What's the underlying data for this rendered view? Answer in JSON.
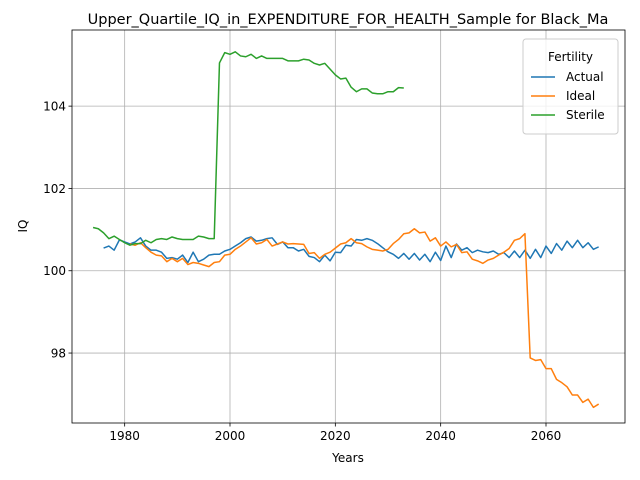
{
  "chart_data": {
    "type": "line",
    "title": "Upper_Quartile_IQ_in_EXPENDITURE_FOR_HEALTH_Sample for Black_Ma",
    "xlabel": "Years",
    "ylabel": "IQ",
    "xlim": [
      1970,
      2075
    ],
    "ylim": [
      96.3,
      105.85
    ],
    "xticks": [
      1980,
      2000,
      2020,
      2040,
      2060
    ],
    "yticks": [
      98,
      100,
      102,
      104
    ],
    "grid": true,
    "legend": {
      "title": "Fertility",
      "placement": "top-right"
    },
    "series": [
      {
        "name": "Actual",
        "color": "#1f77b4",
        "x": [
          1976,
          1977,
          1978,
          1979,
          1980,
          1981,
          1982,
          1983,
          1984,
          1985,
          1986,
          1987,
          1988,
          1989,
          1990,
          1991,
          1992,
          1993,
          1994,
          1995,
          1996,
          1997,
          1998,
          1999,
          2000,
          2001,
          2002,
          2003,
          2004,
          2005,
          2006,
          2007,
          2008,
          2009,
          2010,
          2011,
          2012,
          2013,
          2014,
          2015,
          2016,
          2017,
          2018,
          2019,
          2020,
          2021,
          2022,
          2023,
          2024,
          2025,
          2026,
          2027,
          2028,
          2029,
          2030,
          2031,
          2032,
          2033,
          2034,
          2035,
          2036,
          2037,
          2038,
          2039,
          2040,
          2041,
          2042,
          2043,
          2044,
          2045,
          2046,
          2047,
          2048,
          2049,
          2050,
          2051,
          2052,
          2053,
          2054,
          2055,
          2056,
          2057,
          2058,
          2059,
          2060,
          2061,
          2062,
          2063,
          2064,
          2065,
          2066,
          2067,
          2068,
          2069,
          2070
        ],
        "y": [
          100.55,
          100.6,
          100.5,
          100.75,
          100.7,
          100.65,
          100.7,
          100.8,
          100.6,
          100.5,
          100.5,
          100.45,
          100.3,
          100.32,
          100.28,
          100.38,
          100.2,
          100.45,
          100.22,
          100.28,
          100.38,
          100.4,
          100.4,
          100.48,
          100.52,
          100.6,
          100.68,
          100.78,
          100.82,
          100.72,
          100.74,
          100.78,
          100.8,
          100.64,
          100.7,
          100.56,
          100.56,
          100.48,
          100.52,
          100.35,
          100.32,
          100.22,
          100.38,
          100.24,
          100.45,
          100.44,
          100.62,
          100.6,
          100.76,
          100.74,
          100.78,
          100.74,
          100.66,
          100.56,
          100.46,
          100.4,
          100.3,
          100.42,
          100.28,
          100.42,
          100.26,
          100.4,
          100.22,
          100.45,
          100.25,
          100.6,
          100.32,
          100.65,
          100.5,
          100.56,
          100.44,
          100.5,
          100.46,
          100.44,
          100.48,
          100.4,
          100.44,
          100.32,
          100.48,
          100.32,
          100.5,
          100.3,
          100.52,
          100.32,
          100.6,
          100.42,
          100.66,
          100.5,
          100.72,
          100.56,
          100.74,
          100.56,
          100.68,
          100.52,
          100.58
        ]
      },
      {
        "name": "Ideal",
        "color": "#ff7f0e",
        "x": [
          1981,
          1982,
          1983,
          1984,
          1985,
          1986,
          1987,
          1988,
          1989,
          1990,
          1991,
          1992,
          1993,
          1994,
          1995,
          1996,
          1997,
          1998,
          1999,
          2000,
          2001,
          2002,
          2003,
          2004,
          2005,
          2006,
          2007,
          2008,
          2009,
          2010,
          2011,
          2012,
          2013,
          2014,
          2015,
          2016,
          2017,
          2018,
          2019,
          2020,
          2021,
          2022,
          2023,
          2024,
          2025,
          2026,
          2027,
          2028,
          2029,
          2030,
          2031,
          2032,
          2033,
          2034,
          2035,
          2036,
          2037,
          2038,
          2039,
          2040,
          2041,
          2042,
          2043,
          2044,
          2045,
          2046,
          2047,
          2048,
          2049,
          2050,
          2051,
          2052,
          2053,
          2054,
          2055,
          2056,
          2057,
          2058,
          2059,
          2060,
          2061,
          2062,
          2063,
          2064,
          2065,
          2066,
          2067,
          2068,
          2069,
          2070
        ],
        "y": [
          100.65,
          100.62,
          100.68,
          100.56,
          100.45,
          100.38,
          100.36,
          100.22,
          100.3,
          100.22,
          100.3,
          100.15,
          100.2,
          100.18,
          100.14,
          100.1,
          100.2,
          100.22,
          100.38,
          100.4,
          100.52,
          100.6,
          100.7,
          100.8,
          100.65,
          100.68,
          100.76,
          100.6,
          100.65,
          100.7,
          100.65,
          100.66,
          100.65,
          100.64,
          100.42,
          100.44,
          100.3,
          100.4,
          100.45,
          100.55,
          100.65,
          100.68,
          100.78,
          100.68,
          100.66,
          100.58,
          100.52,
          100.5,
          100.48,
          100.52,
          100.66,
          100.76,
          100.9,
          100.92,
          101.02,
          100.92,
          100.94,
          100.72,
          100.8,
          100.6,
          100.7,
          100.58,
          100.64,
          100.44,
          100.46,
          100.28,
          100.24,
          100.18,
          100.26,
          100.3,
          100.38,
          100.45,
          100.54,
          100.74,
          100.78,
          100.9,
          97.88,
          97.82,
          97.84,
          97.62,
          97.62,
          97.36,
          97.28,
          97.18,
          96.98,
          96.98,
          96.8,
          96.88,
          96.68,
          96.76
        ]
      },
      {
        "name": "Sterile",
        "color": "#2ca02c",
        "x": [
          1974,
          1975,
          1976,
          1977,
          1978,
          1979,
          1980,
          1981,
          1982,
          1983,
          1984,
          1985,
          1986,
          1987,
          1988,
          1989,
          1990,
          1991,
          1992,
          1993,
          1994,
          1995,
          1996,
          1997,
          1998,
          1999,
          2000,
          2001,
          2002,
          2003,
          2004,
          2005,
          2006,
          2007,
          2008,
          2009,
          2010,
          2011,
          2012,
          2013,
          2014,
          2015,
          2016,
          2017,
          2018,
          2019,
          2020,
          2021,
          2022,
          2023,
          2024,
          2025,
          2026,
          2027,
          2028,
          2029,
          2030,
          2031,
          2032,
          2033
        ],
        "y": [
          101.05,
          101.02,
          100.92,
          100.78,
          100.84,
          100.76,
          100.68,
          100.62,
          100.66,
          100.66,
          100.74,
          100.68,
          100.76,
          100.78,
          100.76,
          100.82,
          100.78,
          100.76,
          100.76,
          100.76,
          100.84,
          100.82,
          100.78,
          100.78,
          105.05,
          105.3,
          105.26,
          105.32,
          105.22,
          105.2,
          105.26,
          105.16,
          105.22,
          105.16,
          105.16,
          105.16,
          105.16,
          105.1,
          105.1,
          105.1,
          105.14,
          105.12,
          105.04,
          105.0,
          105.04,
          104.9,
          104.76,
          104.66,
          104.68,
          104.46,
          104.35,
          104.42,
          104.42,
          104.32,
          104.3,
          104.3,
          104.35,
          104.35,
          104.45,
          104.44
        ]
      }
    ]
  }
}
